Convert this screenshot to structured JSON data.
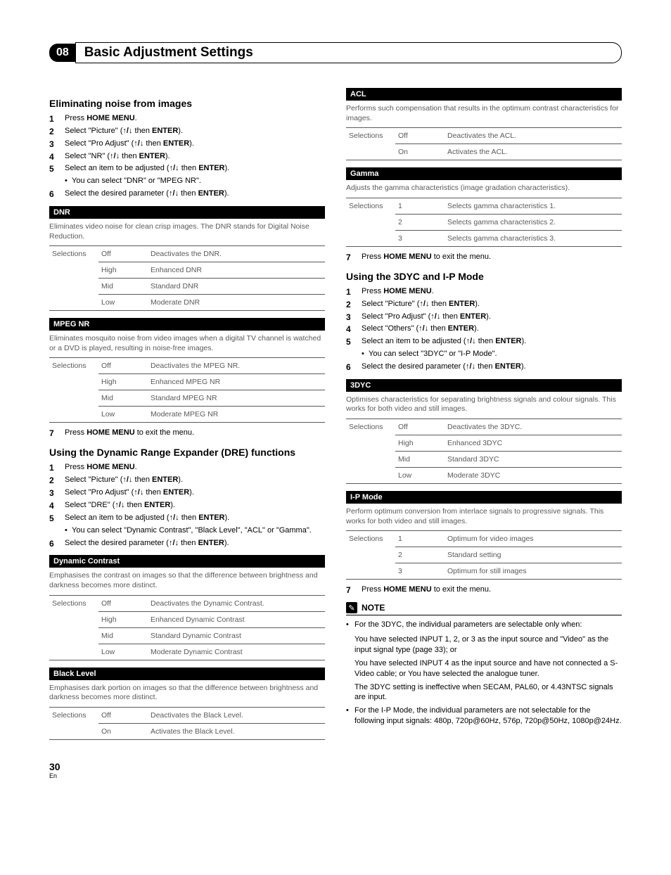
{
  "chapter": {
    "number": "08",
    "title": "Basic Adjustment Settings"
  },
  "colors": {
    "bar_bg": "#000000",
    "bar_fg": "#ffffff",
    "muted": "#5a5a5a",
    "border": "#5a5a5a"
  },
  "common": {
    "press": "Press ",
    "home_menu": "HOME MENU",
    "enter": "ENTER",
    "then": " then ",
    "arrows": "↑/↓",
    "select": "Select ",
    "exit": " to exit the menu."
  },
  "left": {
    "sec1": {
      "title": "Eliminating noise from images",
      "steps": [
        {
          "n": "1",
          "a": "Press ",
          "b": "HOME MENU",
          "c": "."
        },
        {
          "n": "2",
          "a": "Select \"Picture\" (",
          "b": "ENTER",
          "c": ")."
        },
        {
          "n": "3",
          "a": "Select \"Pro Adjust\" (",
          "b": "ENTER",
          "c": ")."
        },
        {
          "n": "4",
          "a": "Select \"NR\" (",
          "b": "ENTER",
          "c": ")."
        },
        {
          "n": "5",
          "a": "Select an item to be adjusted (",
          "b": "ENTER",
          "c": ")."
        },
        {
          "n": "6",
          "a": "Select the desired parameter (",
          "b": "ENTER",
          "c": ")."
        }
      ],
      "sub5": "You can select \"DNR\" or \"MPEG NR\".",
      "dnr": {
        "header": "DNR",
        "desc": "Eliminates video noise for clean crisp images. The DNR stands for Digital Noise Reduction.",
        "rows": [
          [
            "Selections",
            "Off",
            "Deactivates the DNR."
          ],
          [
            "",
            "High",
            "Enhanced DNR"
          ],
          [
            "",
            "Mid",
            "Standard DNR"
          ],
          [
            "",
            "Low",
            "Moderate DNR"
          ]
        ]
      },
      "mpeg": {
        "header": "MPEG NR",
        "desc": "Eliminates mosquito noise from video images when a digital TV channel is watched or a DVD is played, resulting in noise-free images.",
        "rows": [
          [
            "Selections",
            "Off",
            "Deactivates the MPEG NR."
          ],
          [
            "",
            "High",
            "Enhanced MPEG NR"
          ],
          [
            "",
            "Mid",
            "Standard MPEG NR"
          ],
          [
            "",
            "Low",
            "Moderate MPEG NR"
          ]
        ]
      },
      "exit_n": "7"
    },
    "sec2": {
      "title": "Using the Dynamic Range Expander (DRE) functions",
      "steps": [
        {
          "n": "1",
          "a": "Press ",
          "b": "HOME MENU",
          "c": "."
        },
        {
          "n": "2",
          "a": "Select \"Picture\" (",
          "b": "ENTER",
          "c": ")."
        },
        {
          "n": "3",
          "a": "Select \"Pro Adjust\" (",
          "b": "ENTER",
          "c": ")."
        },
        {
          "n": "4",
          "a": "Select \"DRE\" (",
          "b": "ENTER",
          "c": ")."
        },
        {
          "n": "5",
          "a": "Select an item to be adjusted (",
          "b": "ENTER",
          "c": ")."
        },
        {
          "n": "6",
          "a": "Select the desired parameter (",
          "b": "ENTER",
          "c": ")."
        }
      ],
      "sub5": "You can select \"Dynamic Contrast\", \"Black Level\", \"ACL\" or \"Gamma\".",
      "dyn": {
        "header": "Dynamic Contrast",
        "desc": "Emphasises the contrast on images so that the difference between brightness and darkness becomes more distinct.",
        "rows": [
          [
            "Selections",
            "Off",
            "Deactivates the Dynamic Contrast."
          ],
          [
            "",
            "High",
            "Enhanced Dynamic Contrast"
          ],
          [
            "",
            "Mid",
            "Standard Dynamic Contrast"
          ],
          [
            "",
            "Low",
            "Moderate Dynamic Contrast"
          ]
        ]
      },
      "black": {
        "header": "Black Level",
        "desc": "Emphasises dark portion on images so that the difference between brightness and darkness becomes more distinct.",
        "rows": [
          [
            "Selections",
            "Off",
            "Deactivates the Black Level."
          ],
          [
            "",
            "On",
            "Activates the Black Level."
          ]
        ]
      }
    }
  },
  "right": {
    "acl": {
      "header": "ACL",
      "desc": "Performs such compensation that results in the optimum contrast characteristics for images.",
      "rows": [
        [
          "Selections",
          "Off",
          "Deactivates the ACL."
        ],
        [
          "",
          "On",
          "Activates the ACL."
        ]
      ]
    },
    "gamma": {
      "header": "Gamma",
      "desc": "Adjusts the gamma characteristics (image gradation characteristics).",
      "rows": [
        [
          "Selections",
          "1",
          "Selects gamma characteristics 1."
        ],
        [
          "",
          "2",
          "Selects gamma characteristics 2."
        ],
        [
          "",
          "3",
          "Selects gamma characteristics 3."
        ]
      ]
    },
    "exit1_n": "7",
    "sec3": {
      "title": "Using the 3DYC and I-P Mode",
      "steps": [
        {
          "n": "1",
          "a": "Press ",
          "b": "HOME MENU",
          "c": "."
        },
        {
          "n": "2",
          "a": "Select \"Picture\" (",
          "b": "ENTER",
          "c": ")."
        },
        {
          "n": "3",
          "a": "Select \"Pro Adjust\" (",
          "b": "ENTER",
          "c": ")."
        },
        {
          "n": "4",
          "a": "Select \"Others\" (",
          "b": "ENTER",
          "c": ")."
        },
        {
          "n": "5",
          "a": "Select an item to be adjusted (",
          "b": "ENTER",
          "c": ")."
        },
        {
          "n": "6",
          "a": "Select the desired parameter (",
          "b": "ENTER",
          "c": ")."
        }
      ],
      "sub5": "You can select \"3DYC\" or \"I-P Mode\".",
      "dyc": {
        "header": "3DYC",
        "desc": "Optimises characteristics for separating brightness signals and colour signals. This works for both video and still images.",
        "rows": [
          [
            "Selections",
            "Off",
            "Deactivates the 3DYC."
          ],
          [
            "",
            "High",
            "Enhanced 3DYC"
          ],
          [
            "",
            "Mid",
            "Standard 3DYC"
          ],
          [
            "",
            "Low",
            "Moderate 3DYC"
          ]
        ]
      },
      "ip": {
        "header": "I-P Mode",
        "desc": "Perform optimum conversion from interlace signals to progressive signals. This works for both video and still images.",
        "rows": [
          [
            "Selections",
            "1",
            "Optimum for video images"
          ],
          [
            "",
            "2",
            "Standard setting"
          ],
          [
            "",
            "3",
            "Optimum for still images"
          ]
        ]
      },
      "exit_n": "7"
    },
    "note": {
      "title": "NOTE",
      "items": [
        "For the 3DYC, the individual parameters are selectable only when:",
        "For the I-P Mode, the individual parameters are not selectable for the following input signals: 480p, 720p@60Hz, 576p, 720p@50Hz, 1080p@24Hz."
      ],
      "paras": [
        "You have selected INPUT 1, 2, or 3 as the input source and \"Video\" as the input signal type (page 33); or",
        "You have selected INPUT 4 as the input source and have not connected a S-Video cable; or You have selected the analogue tuner.",
        "The 3DYC setting is ineffective when SECAM, PAL60, or 4.43NTSC signals are input."
      ]
    }
  },
  "footer": {
    "page": "30",
    "lang": "En"
  }
}
